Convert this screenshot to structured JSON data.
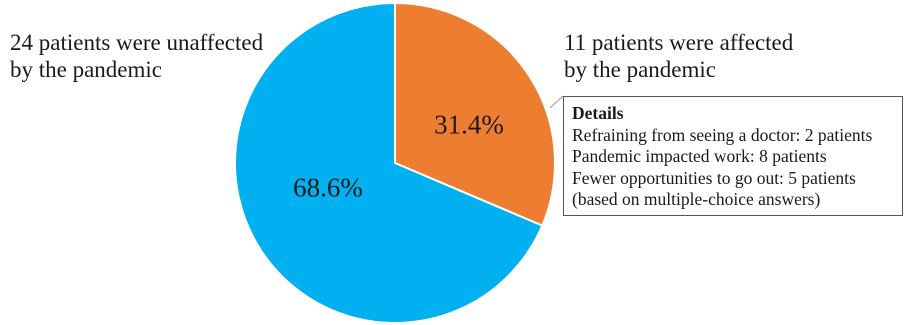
{
  "labels": {
    "unaffected": [
      "24 patients were unaffected",
      "by the pandemic"
    ],
    "affected": [
      "11 patients were affected",
      "by the pandemic"
    ]
  },
  "details": {
    "title": "Details",
    "lines": [
      "Refraining from seeing a doctor: 2 patients",
      "Pandemic impacted work: 8 patients",
      "Fewer opportunities to go out: 5 patients",
      "(based on multiple-choice answers)"
    ]
  },
  "chart_data": {
    "type": "pie",
    "categories": [
      "affected by the pandemic",
      "unaffected by the pandemic"
    ],
    "values": [
      31.4,
      68.6
    ],
    "data_labels": [
      "31.4%",
      "68.6%"
    ],
    "colors": [
      "#ED7D31",
      "#00B0F0"
    ],
    "start": "12 o'clock, clockwise",
    "legend": "none"
  }
}
